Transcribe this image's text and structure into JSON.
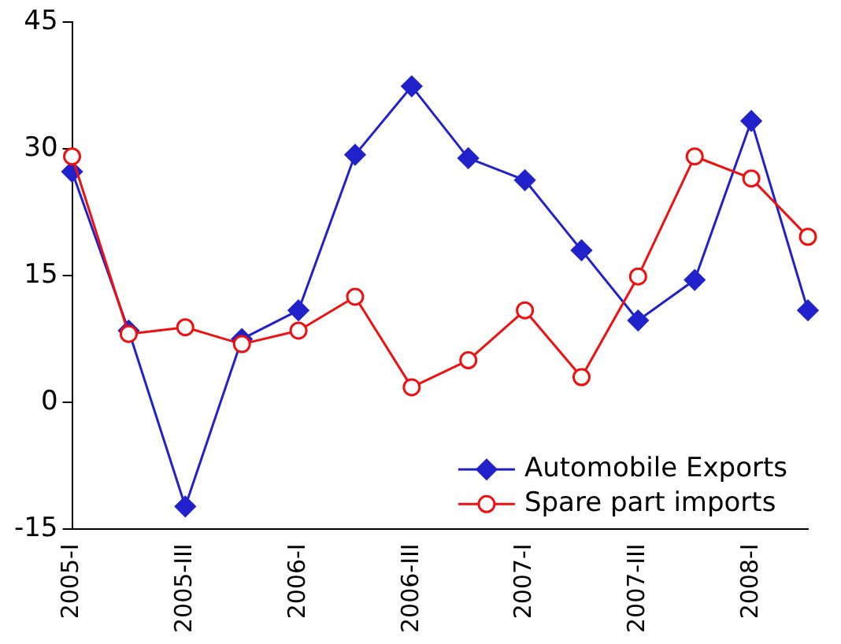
{
  "chart_data": {
    "type": "line",
    "categories": [
      "2005-I",
      null,
      "2005-III",
      null,
      "2006-I",
      null,
      "2006-III",
      null,
      "2007-I",
      null,
      "2007-III",
      null,
      "2008-I",
      null
    ],
    "series": [
      {
        "name": "Automobile Exports",
        "color": "#2222cc",
        "marker": "diamond",
        "values": [
          27.3,
          8.5,
          -12.3,
          7.5,
          10.9,
          29.3,
          37.4,
          28.9,
          26.3,
          18,
          9.7,
          14.5,
          33.3,
          10.9
        ]
      },
      {
        "name": "Spare part imports",
        "color": "#ee1111",
        "marker": "circle",
        "values": [
          29.1,
          8.1,
          8.9,
          6.9,
          8.5,
          12.5,
          1.8,
          5,
          10.9,
          3,
          14.9,
          29.1,
          26.5,
          19.6
        ]
      }
    ],
    "ylim": [
      -15,
      45
    ],
    "yticks": [
      -15,
      0,
      15,
      30,
      45
    ],
    "grid": false,
    "legend": "bottom right",
    "line_style": "solid"
  }
}
